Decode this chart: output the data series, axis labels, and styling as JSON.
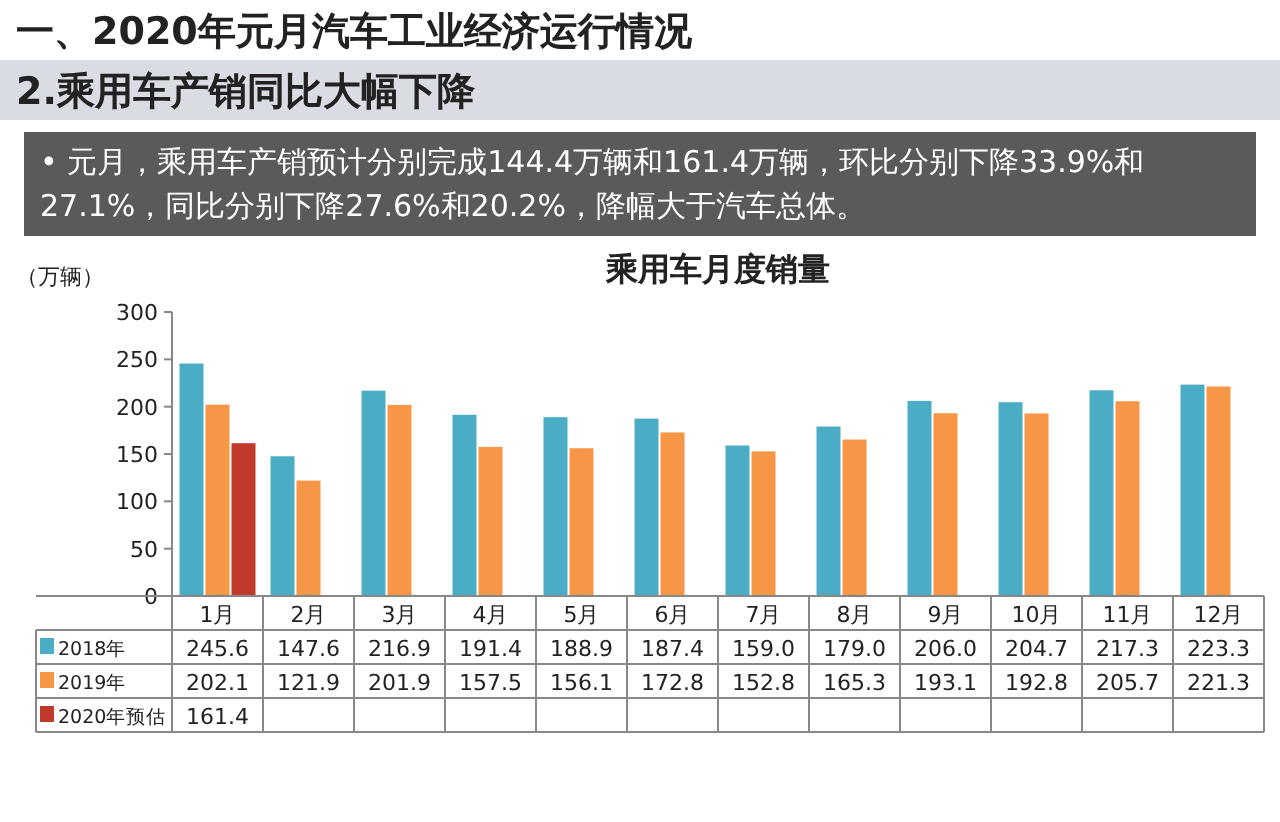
{
  "chart_data": {
    "type": "bar",
    "title": "乘用车月度销量",
    "ylabel": "（万辆）",
    "annotations": [
      "一、2020年元月汽车工业经济运行情况",
      "2.乘用车产销同比大幅下降",
      "• 元月，乘用车产销预计分别完成144.4万辆和161.4万辆，环比分别下降33.9%和27.1%，同比分别下降27.6%和20.2%，降幅大于汽车总体。"
    ],
    "categories": [
      "1月",
      "2月",
      "3月",
      "4月",
      "5月",
      "6月",
      "7月",
      "8月",
      "9月",
      "10月",
      "11月",
      "12月"
    ],
    "ylim": [
      0,
      300
    ],
    "yticks": [
      0,
      50,
      100,
      150,
      200,
      250,
      300
    ],
    "legend": "bottom",
    "series": [
      {
        "name": "2018年",
        "color": "#4bacc6",
        "values": [
          245.6,
          147.6,
          216.9,
          191.4,
          188.9,
          187.4,
          159.0,
          179.0,
          206.0,
          204.7,
          217.3,
          223.3
        ],
        "value_labels": [
          "245.6",
          "147.6",
          "216.9",
          "191.4",
          "188.9",
          "187.4",
          "159.0",
          "179.0",
          "206.0",
          "204.7",
          "217.3",
          "223.3"
        ]
      },
      {
        "name": "2019年",
        "color": "#f79646",
        "values": [
          202.1,
          121.9,
          201.9,
          157.5,
          156.1,
          172.8,
          152.8,
          165.3,
          193.1,
          192.8,
          205.7,
          221.3
        ],
        "value_labels": [
          "202.1",
          "121.9",
          "201.9",
          "157.5",
          "156.1",
          "172.8",
          "152.8",
          "165.3",
          "193.1",
          "192.8",
          "205.7",
          "221.3"
        ]
      },
      {
        "name": "2020年预估",
        "color": "#c0392b",
        "values": [
          161.4,
          null,
          null,
          null,
          null,
          null,
          null,
          null,
          null,
          null,
          null,
          null
        ],
        "value_labels": [
          "161.4",
          null,
          null,
          null,
          null,
          null,
          null,
          null,
          null,
          null,
          null,
          null
        ]
      }
    ]
  }
}
